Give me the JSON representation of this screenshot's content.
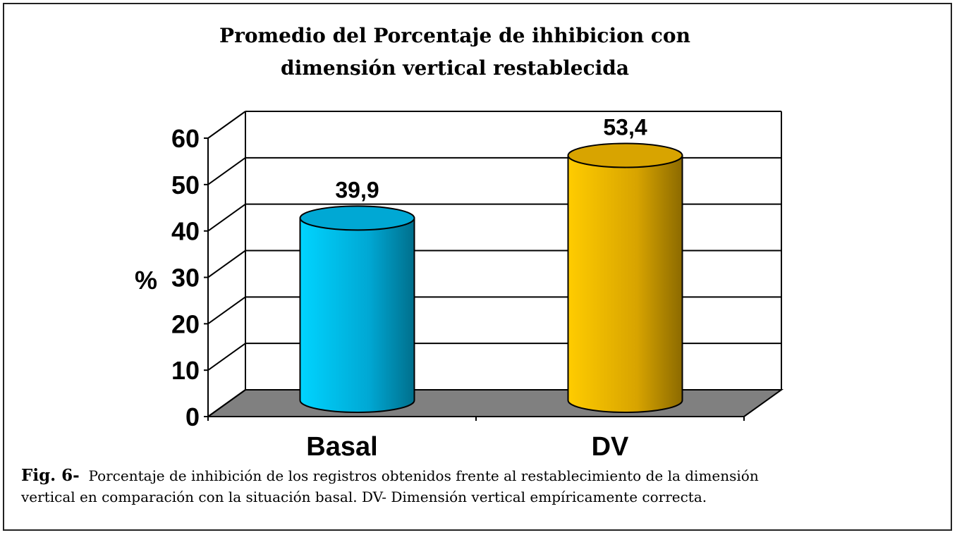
{
  "chart_data": {
    "type": "bar",
    "title": [
      "Promedio del Porcentaje de ihhibicion con",
      "dimensión vertical restablecida"
    ],
    "categories": [
      "Basal",
      "DV"
    ],
    "values": [
      39.9,
      53.4
    ],
    "data_labels": [
      "39,9",
      "53,4"
    ],
    "xlabel": "",
    "ylabel": "%",
    "ylim": [
      0,
      60
    ],
    "yticks": [
      0,
      10,
      20,
      30,
      40,
      50,
      60
    ],
    "grid": true,
    "style": "3d-cylinder",
    "colors": [
      "#00c4f4",
      "#f5c400"
    ],
    "floor_color": "#808080"
  },
  "caption": {
    "label": "Fig. 6-",
    "line1": "Porcentaje de inhibición de los registros obtenidos frente al restablecimiento de la dimensión",
    "line2": "vertical en comparación con la situación basal. DV- Dimensión vertical empíricamente correcta."
  }
}
